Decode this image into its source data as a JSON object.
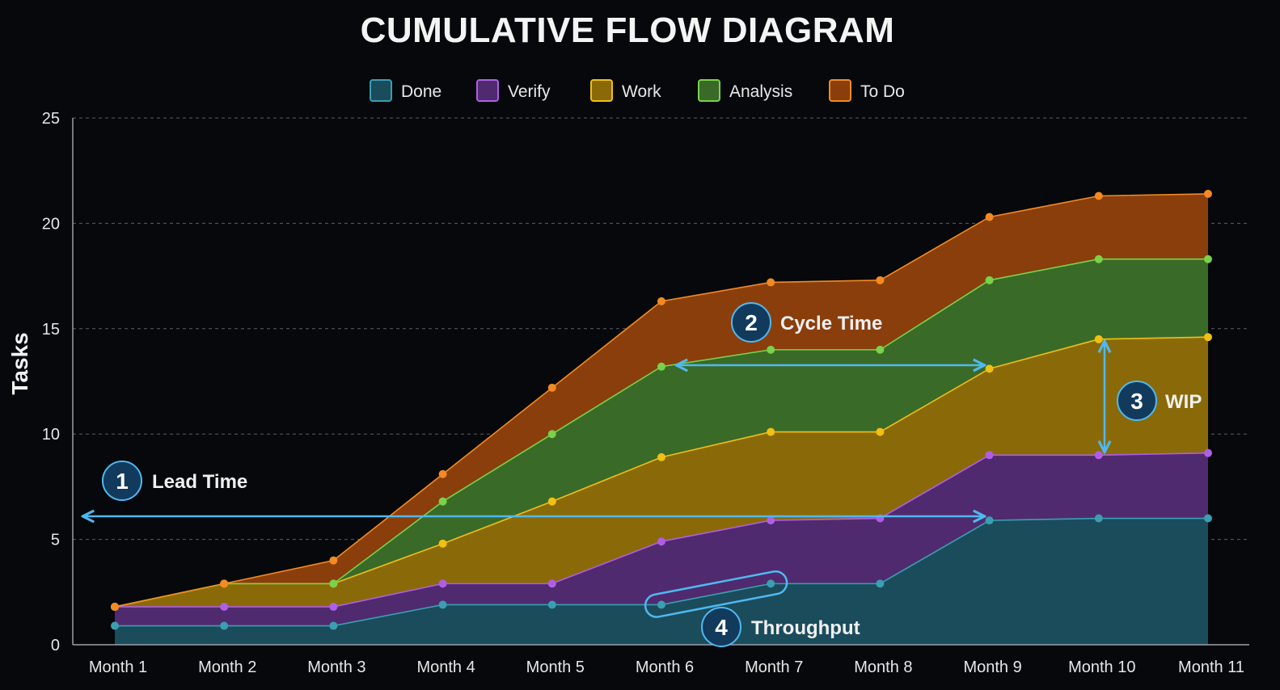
{
  "chart_data": {
    "type": "area",
    "title": "CUMULATIVE FLOW DIAGRAM",
    "ylabel": "Tasks",
    "xlabel": "",
    "ylim": [
      0,
      25
    ],
    "yticks": [
      0,
      5,
      10,
      15,
      20,
      25
    ],
    "grid": true,
    "legend_position": "top-center",
    "categories": [
      "Month 1",
      "Month 2",
      "Month 3",
      "Month 4",
      "Month 5",
      "Month 6",
      "Month 7",
      "Month 8",
      "Month 9",
      "Month 10",
      "Month 11"
    ],
    "series": [
      {
        "name": "Done",
        "color": "#3a9fb0",
        "fill": "#1b4c5c",
        "values": [
          0.9,
          0.9,
          0.9,
          1.9,
          1.9,
          1.9,
          2.9,
          2.9,
          5.9,
          6.0,
          6.0
        ]
      },
      {
        "name": "Verify",
        "color": "#b05ee8",
        "fill": "#4f2a6e",
        "values": [
          1.8,
          1.8,
          1.8,
          2.9,
          2.9,
          4.9,
          5.9,
          6.0,
          9.0,
          9.0,
          9.1
        ]
      },
      {
        "name": "Work",
        "color": "#f2c010",
        "fill": "#8a6a08",
        "values": [
          1.8,
          2.9,
          2.9,
          4.8,
          6.8,
          8.9,
          10.1,
          10.1,
          13.1,
          14.5,
          14.6
        ]
      },
      {
        "name": "Analysis",
        "color": "#78d24a",
        "fill": "#3a6a28",
        "values": [
          1.8,
          2.9,
          2.9,
          6.8,
          10.0,
          13.2,
          14.0,
          14.0,
          17.3,
          18.3,
          18.3
        ]
      },
      {
        "name": "To Do",
        "color": "#f58a20",
        "fill": "#8a3e0c",
        "values": [
          1.8,
          2.9,
          4.0,
          8.1,
          12.2,
          16.3,
          17.2,
          17.3,
          20.3,
          21.3,
          21.4
        ]
      }
    ],
    "annotations": [
      {
        "number": "1",
        "label": "Lead Time"
      },
      {
        "number": "2",
        "label": "Cycle Time"
      },
      {
        "number": "3",
        "label": "WIP"
      },
      {
        "number": "4",
        "label": "Throughput"
      }
    ]
  }
}
